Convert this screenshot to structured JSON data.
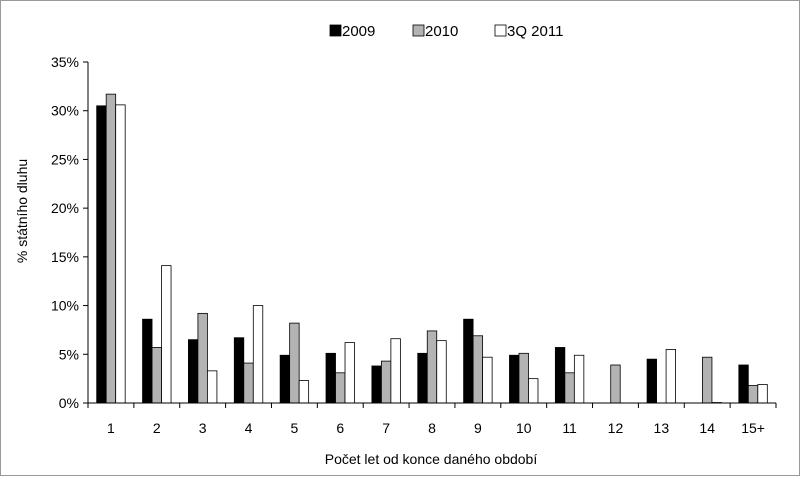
{
  "chart_data": {
    "type": "bar",
    "title": "",
    "xlabel": "Počet let od konce daného období",
    "ylabel": "% státního dluhu",
    "categories": [
      "1",
      "2",
      "3",
      "4",
      "5",
      "6",
      "7",
      "8",
      "9",
      "10",
      "11",
      "12",
      "13",
      "14",
      "15+"
    ],
    "series": [
      {
        "name": "2009",
        "color": "#000000",
        "values": [
          30.5,
          8.6,
          6.5,
          6.7,
          4.9,
          5.1,
          3.8,
          5.1,
          8.6,
          4.9,
          5.7,
          0,
          4.5,
          0,
          3.9
        ]
      },
      {
        "name": "2010",
        "color": "#b3b3b3",
        "values": [
          31.7,
          5.7,
          9.2,
          4.1,
          8.2,
          3.1,
          4.3,
          7.4,
          6.9,
          5.1,
          3.1,
          3.9,
          0,
          4.7,
          1.8
        ]
      },
      {
        "name": "3Q 2011",
        "color": "#ffffff",
        "values": [
          30.6,
          14.1,
          3.3,
          10.0,
          2.3,
          6.2,
          6.6,
          6.4,
          4.7,
          2.5,
          4.9,
          0,
          5.5,
          0.05,
          1.9
        ]
      }
    ],
    "ylim": [
      0,
      35
    ],
    "yticks": [
      0,
      5,
      10,
      15,
      20,
      25,
      30,
      35
    ],
    "ytick_labels": [
      "0%",
      "5%",
      "10%",
      "15%",
      "20%",
      "25%",
      "30%",
      "35%"
    ],
    "grid": false,
    "legend_position": "top"
  }
}
